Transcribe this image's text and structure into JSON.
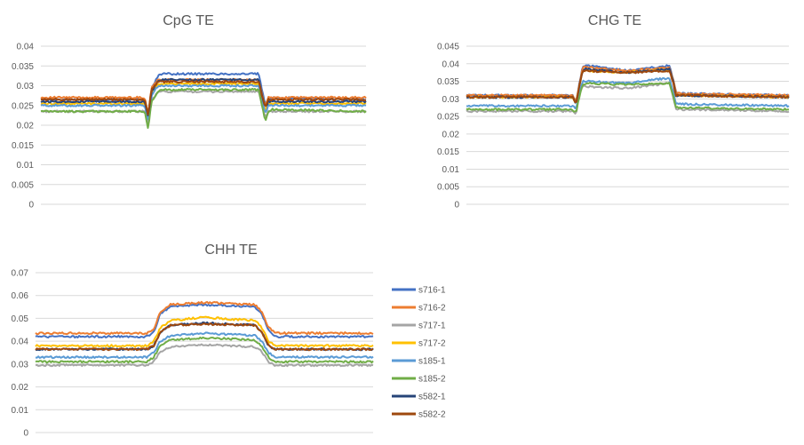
{
  "chart_data": [
    {
      "type": "line",
      "title": "CpG TE",
      "xlabel": "",
      "ylabel": "",
      "ylim": [
        0,
        0.04
      ],
      "yticks": [
        "0",
        "0.005",
        "0.01",
        "0.015",
        "0.02",
        "0.025",
        "0.03",
        "0.035",
        "0.04"
      ],
      "x_range": [
        0,
        100
      ],
      "grid": true,
      "series": [
        {
          "name": "s716-1",
          "color": "#4472c4",
          "x": [
            0,
            32,
            33,
            34,
            36,
            37,
            50,
            67,
            68,
            69,
            70,
            71,
            100
          ],
          "y": [
            0.0265,
            0.0265,
            0.022,
            0.029,
            0.0325,
            0.033,
            0.033,
            0.033,
            0.029,
            0.025,
            0.0265,
            0.027,
            0.0265
          ]
        },
        {
          "name": "s716-2",
          "color": "#ed7d31",
          "x": [
            0,
            32,
            33,
            34,
            36,
            37,
            50,
            67,
            68,
            69,
            70,
            71,
            100
          ],
          "y": [
            0.027,
            0.027,
            0.0225,
            0.0295,
            0.0315,
            0.0315,
            0.0315,
            0.0315,
            0.028,
            0.025,
            0.027,
            0.027,
            0.027
          ]
        },
        {
          "name": "s717-1",
          "color": "#a5a5a5",
          "x": [
            0,
            32,
            33,
            34,
            36,
            37,
            50,
            67,
            68,
            69,
            70,
            71,
            100
          ],
          "y": [
            0.0235,
            0.0235,
            0.02,
            0.026,
            0.0285,
            0.0285,
            0.0285,
            0.0285,
            0.025,
            0.022,
            0.0235,
            0.0235,
            0.0235
          ]
        },
        {
          "name": "s717-2",
          "color": "#ffc000",
          "x": [
            0,
            32,
            33,
            34,
            36,
            37,
            50,
            67,
            68,
            69,
            70,
            71,
            100
          ],
          "y": [
            0.0255,
            0.0255,
            0.0215,
            0.028,
            0.0305,
            0.0305,
            0.0305,
            0.0305,
            0.027,
            0.0235,
            0.0255,
            0.0255,
            0.0255
          ]
        },
        {
          "name": "s185-1",
          "color": "#5b9bd5",
          "x": [
            0,
            32,
            33,
            34,
            36,
            37,
            50,
            67,
            68,
            69,
            70,
            71,
            100
          ],
          "y": [
            0.025,
            0.025,
            0.021,
            0.0275,
            0.03,
            0.03,
            0.03,
            0.03,
            0.0265,
            0.023,
            0.025,
            0.025,
            0.025
          ]
        },
        {
          "name": "s185-2",
          "color": "#70ad47",
          "x": [
            0,
            32,
            33,
            34,
            36,
            37,
            50,
            67,
            68,
            69,
            70,
            71,
            100
          ],
          "y": [
            0.0235,
            0.0235,
            0.019,
            0.026,
            0.0285,
            0.029,
            0.029,
            0.029,
            0.025,
            0.021,
            0.0235,
            0.024,
            0.0235
          ]
        },
        {
          "name": "s582-1",
          "color": "#264478",
          "x": [
            0,
            32,
            33,
            34,
            36,
            37,
            50,
            67,
            68,
            69,
            70,
            71,
            100
          ],
          "y": [
            0.026,
            0.026,
            0.022,
            0.0285,
            0.031,
            0.0315,
            0.0315,
            0.0315,
            0.0275,
            0.0245,
            0.026,
            0.026,
            0.026
          ]
        },
        {
          "name": "s582-2",
          "color": "#9e480e",
          "x": [
            0,
            32,
            33,
            34,
            36,
            37,
            50,
            67,
            68,
            69,
            70,
            71,
            100
          ],
          "y": [
            0.0265,
            0.0265,
            0.0225,
            0.029,
            0.031,
            0.031,
            0.031,
            0.031,
            0.0275,
            0.0245,
            0.0265,
            0.0265,
            0.0265
          ]
        }
      ]
    },
    {
      "type": "line",
      "title": "CHG TE",
      "xlabel": "",
      "ylabel": "",
      "ylim": [
        0,
        0.045
      ],
      "yticks": [
        "0",
        "0.005",
        "0.01",
        "0.015",
        "0.02",
        "0.025",
        "0.03",
        "0.035",
        "0.04",
        "0.045"
      ],
      "x_range": [
        0,
        100
      ],
      "grid": true,
      "series": [
        {
          "name": "s716-1",
          "color": "#4472c4",
          "x": [
            0,
            33,
            34,
            35,
            36,
            37,
            50,
            63,
            64,
            65,
            66,
            67,
            100
          ],
          "y": [
            0.031,
            0.031,
            0.029,
            0.034,
            0.039,
            0.0395,
            0.038,
            0.0395,
            0.036,
            0.032,
            0.0315,
            0.0315,
            0.031
          ]
        },
        {
          "name": "s716-2",
          "color": "#ed7d31",
          "x": [
            0,
            33,
            34,
            35,
            36,
            37,
            50,
            63,
            64,
            65,
            66,
            67,
            100
          ],
          "y": [
            0.031,
            0.031,
            0.029,
            0.034,
            0.039,
            0.039,
            0.038,
            0.039,
            0.036,
            0.032,
            0.0315,
            0.0315,
            0.031
          ]
        },
        {
          "name": "s717-1",
          "color": "#a5a5a5",
          "x": [
            0,
            33,
            34,
            35,
            36,
            37,
            50,
            63,
            64,
            65,
            66,
            67,
            100
          ],
          "y": [
            0.0265,
            0.0265,
            0.0255,
            0.031,
            0.0335,
            0.0335,
            0.033,
            0.0345,
            0.031,
            0.027,
            0.027,
            0.027,
            0.0265
          ]
        },
        {
          "name": "s717-2",
          "color": "#ffc000",
          "x": [
            0,
            33,
            34,
            35,
            36,
            37,
            50,
            63,
            64,
            65,
            66,
            67,
            100
          ],
          "y": [
            0.0305,
            0.0305,
            0.0285,
            0.0335,
            0.038,
            0.038,
            0.0375,
            0.0385,
            0.0355,
            0.031,
            0.031,
            0.031,
            0.0305
          ]
        },
        {
          "name": "s185-1",
          "color": "#5b9bd5",
          "x": [
            0,
            33,
            34,
            35,
            36,
            37,
            50,
            63,
            64,
            65,
            66,
            67,
            100
          ],
          "y": [
            0.028,
            0.028,
            0.027,
            0.0315,
            0.035,
            0.035,
            0.0345,
            0.036,
            0.0325,
            0.0285,
            0.0285,
            0.0285,
            0.028
          ]
        },
        {
          "name": "s185-2",
          "color": "#70ad47",
          "x": [
            0,
            33,
            34,
            35,
            36,
            37,
            50,
            63,
            64,
            65,
            66,
            67,
            100
          ],
          "y": [
            0.027,
            0.027,
            0.026,
            0.0305,
            0.034,
            0.0345,
            0.034,
            0.0345,
            0.0315,
            0.0275,
            0.0275,
            0.0275,
            0.027
          ]
        },
        {
          "name": "s582-1",
          "color": "#264478",
          "x": [
            0,
            33,
            34,
            35,
            36,
            37,
            50,
            63,
            64,
            65,
            66,
            67,
            100
          ],
          "y": [
            0.0305,
            0.0305,
            0.0285,
            0.0335,
            0.038,
            0.0385,
            0.0375,
            0.0385,
            0.0355,
            0.031,
            0.031,
            0.031,
            0.0305
          ]
        },
        {
          "name": "s582-2",
          "color": "#9e480e",
          "x": [
            0,
            33,
            34,
            35,
            36,
            37,
            50,
            63,
            64,
            65,
            66,
            67,
            100
          ],
          "y": [
            0.0305,
            0.0305,
            0.0285,
            0.0335,
            0.038,
            0.038,
            0.0375,
            0.038,
            0.035,
            0.031,
            0.031,
            0.031,
            0.0305
          ]
        }
      ]
    },
    {
      "type": "line",
      "title": "CHH TE",
      "xlabel": "",
      "ylabel": "",
      "ylim": [
        0,
        0.07
      ],
      "yticks": [
        "0",
        "0.01",
        "0.02",
        "0.03",
        "0.04",
        "0.05",
        "0.06",
        "0.07"
      ],
      "x_range": [
        0,
        100
      ],
      "grid": true,
      "legend": "right",
      "series": [
        {
          "name": "s716-1",
          "color": "#4472c4",
          "x": [
            0,
            33,
            35,
            37,
            40,
            50,
            65,
            67,
            69,
            71,
            100
          ],
          "y": [
            0.042,
            0.042,
            0.044,
            0.052,
            0.055,
            0.056,
            0.055,
            0.052,
            0.045,
            0.042,
            0.042
          ]
        },
        {
          "name": "s716-2",
          "color": "#ed7d31",
          "x": [
            0,
            33,
            35,
            37,
            40,
            50,
            65,
            67,
            69,
            71,
            100
          ],
          "y": [
            0.0435,
            0.0435,
            0.045,
            0.053,
            0.056,
            0.057,
            0.056,
            0.053,
            0.046,
            0.0435,
            0.0435
          ]
        },
        {
          "name": "s717-1",
          "color": "#a5a5a5",
          "x": [
            0,
            33,
            35,
            37,
            40,
            50,
            65,
            67,
            69,
            71,
            100
          ],
          "y": [
            0.0295,
            0.0295,
            0.031,
            0.0355,
            0.0375,
            0.0385,
            0.0375,
            0.0355,
            0.031,
            0.0295,
            0.0295
          ]
        },
        {
          "name": "s717-2",
          "color": "#ffc000",
          "x": [
            0,
            33,
            35,
            37,
            40,
            50,
            65,
            67,
            69,
            71,
            100
          ],
          "y": [
            0.038,
            0.038,
            0.04,
            0.046,
            0.049,
            0.0505,
            0.049,
            0.046,
            0.04,
            0.038,
            0.038
          ]
        },
        {
          "name": "s185-1",
          "color": "#5b9bd5",
          "x": [
            0,
            33,
            35,
            37,
            40,
            50,
            65,
            67,
            69,
            71,
            100
          ],
          "y": [
            0.033,
            0.033,
            0.035,
            0.04,
            0.0425,
            0.0435,
            0.0425,
            0.04,
            0.035,
            0.033,
            0.033
          ]
        },
        {
          "name": "s185-2",
          "color": "#70ad47",
          "x": [
            0,
            33,
            35,
            37,
            40,
            50,
            65,
            67,
            69,
            71,
            100
          ],
          "y": [
            0.031,
            0.031,
            0.033,
            0.038,
            0.0405,
            0.0415,
            0.0405,
            0.038,
            0.033,
            0.031,
            0.031
          ]
        },
        {
          "name": "s582-1",
          "color": "#264478",
          "x": [
            0,
            33,
            35,
            37,
            40,
            50,
            65,
            67,
            69,
            71,
            100
          ],
          "y": [
            0.0365,
            0.0365,
            0.038,
            0.044,
            0.047,
            0.048,
            0.047,
            0.044,
            0.038,
            0.0365,
            0.0365
          ]
        },
        {
          "name": "s582-2",
          "color": "#9e480e",
          "x": [
            0,
            33,
            35,
            37,
            40,
            50,
            65,
            67,
            69,
            71,
            100
          ],
          "y": [
            0.0365,
            0.0365,
            0.038,
            0.044,
            0.047,
            0.0475,
            0.047,
            0.044,
            0.038,
            0.0365,
            0.0365
          ]
        }
      ]
    }
  ]
}
